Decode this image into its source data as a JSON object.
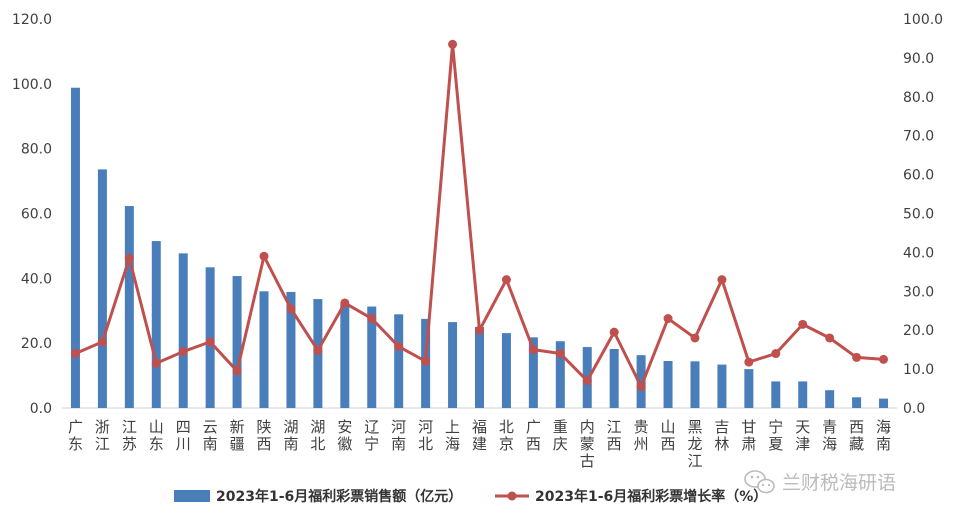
{
  "chart_data": {
    "type": "bar+line",
    "categories": [
      "广东",
      "浙江",
      "江苏",
      "山东",
      "四川",
      "云南",
      "新疆",
      "陕西",
      "湖南",
      "湖北",
      "安徽",
      "辽宁",
      "河南",
      "河北",
      "上海",
      "福建",
      "北京",
      "广西",
      "重庆",
      "内蒙古",
      "江西",
      "贵州",
      "山西",
      "黑龙江",
      "吉林",
      "甘肃",
      "宁夏",
      "天津",
      "青海",
      "西藏",
      "海南"
    ],
    "series": [
      {
        "name": "2023年1-6月福利彩票销售额（亿元）",
        "type": "bar",
        "axis": "left",
        "color": "#4a7ebb",
        "values": [
          98.8,
          73.6,
          62.3,
          51.5,
          47.7,
          43.4,
          40.7,
          36.0,
          35.8,
          33.6,
          32.0,
          31.3,
          28.9,
          27.5,
          26.5,
          25.0,
          23.1,
          21.8,
          20.6,
          18.8,
          18.2,
          16.3,
          14.5,
          14.4,
          13.4,
          12.0,
          8.2,
          8.2,
          5.5,
          3.3,
          2.9
        ]
      },
      {
        "name": "2023年1-6月福利彩票增长率（%）",
        "type": "line",
        "axis": "right",
        "color": "#c0504d",
        "values": [
          14.0,
          17.0,
          38.5,
          11.5,
          14.5,
          17.0,
          9.5,
          39.0,
          25.5,
          14.8,
          27.0,
          23.0,
          15.8,
          12.0,
          93.5,
          20.0,
          33.0,
          15.0,
          14.0,
          7.0,
          19.5,
          5.5,
          23.0,
          18.0,
          33.0,
          11.8,
          14.0,
          21.5,
          18.0,
          13.0,
          12.5
        ]
      }
    ],
    "y_left": {
      "min": 0,
      "max": 120,
      "step": 20,
      "tick_labels": [
        "0.0",
        "20.0",
        "40.0",
        "60.0",
        "80.0",
        "100.0",
        "120.0"
      ]
    },
    "y_right": {
      "min": 0,
      "max": 100,
      "step": 10,
      "tick_labels": [
        "0.0",
        "10.0",
        "20.0",
        "30.0",
        "40.0",
        "50.0",
        "60.0",
        "70.0",
        "80.0",
        "90.0",
        "100.0"
      ]
    },
    "grid": false,
    "legend_position": "bottom-center"
  },
  "watermark": {
    "text": "兰财税海研语",
    "icon": "wechat-icon"
  }
}
